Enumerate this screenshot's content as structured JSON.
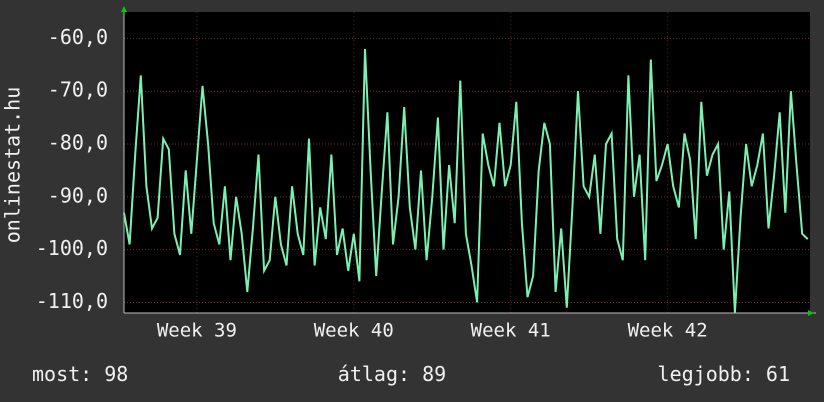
{
  "chart_data": {
    "type": "line",
    "ylabel": "onlinestat.hu",
    "x": [
      0,
      0.25,
      0.5,
      0.75,
      1,
      1.25,
      1.5,
      1.75,
      2,
      2.25,
      2.5,
      2.75,
      3,
      3.25,
      3.5,
      3.75,
      4,
      4.25,
      4.5,
      4.75,
      5,
      5.25,
      5.5,
      5.75,
      6,
      6.25,
      6.5,
      6.75,
      7,
      7.25,
      7.5,
      7.75,
      8,
      8.25,
      8.5,
      8.75,
      9,
      9.25,
      9.5,
      9.75,
      10,
      10.25,
      10.5,
      10.75,
      11,
      11.25,
      11.5,
      11.75,
      12,
      12.25,
      12.5,
      12.75,
      13,
      13.25,
      13.5,
      13.75,
      14,
      14.25,
      14.5,
      14.75,
      15,
      15.25,
      15.5,
      15.75,
      16,
      16.25,
      16.5,
      16.75,
      17,
      17.25,
      17.5,
      17.75,
      18,
      18.25,
      18.5,
      18.75,
      19,
      19.25,
      19.5,
      19.75,
      20,
      20.25,
      20.5,
      20.75,
      21,
      21.25,
      21.5,
      21.75,
      22,
      22.25,
      22.5,
      22.75,
      23,
      23.25,
      23.5,
      23.75,
      24,
      24.25,
      24.5,
      24.75,
      25,
      25.25,
      25.5,
      25.75,
      26,
      26.25,
      26.5,
      26.75,
      27,
      27.25,
      27.5,
      27.75,
      28,
      28.25,
      28.5,
      28.75,
      29,
      29.25,
      29.5,
      29.75,
      30,
      30.25,
      30.5
    ],
    "series": [
      {
        "color": "#7cf0b0",
        "values": [
          -93,
          -99,
          -82,
          -67,
          -88,
          -96,
          -94,
          -79,
          -81,
          -97,
          -101,
          -85,
          -97,
          -83,
          -69,
          -80,
          -95,
          -99,
          -88,
          -102,
          -90,
          -97,
          -108,
          -96,
          -82,
          -104,
          -102,
          -90,
          -99,
          -103,
          -88,
          -97,
          -101,
          -79,
          -103,
          -92,
          -98,
          -82,
          -101,
          -96,
          -104,
          -97,
          -106,
          -62,
          -85,
          -105,
          -89,
          -74,
          -99,
          -90,
          -73,
          -92,
          -100,
          -85,
          -102,
          -90,
          -75,
          -100,
          -84,
          -95,
          -68,
          -97,
          -103,
          -110,
          -78,
          -84,
          -88,
          -76,
          -88,
          -84,
          -72,
          -95,
          -109,
          -105,
          -85,
          -76,
          -80,
          -108,
          -96,
          -111,
          -92,
          -70,
          -88,
          -90,
          -82,
          -97,
          -80,
          -78,
          -98,
          -102,
          -67,
          -90,
          -82,
          -102,
          -64,
          -87,
          -84,
          -80,
          -88,
          -92,
          -78,
          -83,
          -98,
          -72,
          -86,
          -82,
          -80,
          -100,
          -89,
          -112,
          -94,
          -80,
          -88,
          -84,
          -78,
          -96,
          -86,
          -74,
          -93,
          -70,
          -84,
          -97,
          -98
        ]
      }
    ],
    "xlim": [
      0,
      30.6
    ],
    "xticks": [
      {
        "value": 3.25,
        "label": "Week 39"
      },
      {
        "value": 10.25,
        "label": "Week 40"
      },
      {
        "value": 17.25,
        "label": "Week 41"
      },
      {
        "value": 24.25,
        "label": "Week 42"
      }
    ],
    "ylim": [
      -112,
      -55
    ],
    "yticks": [
      {
        "value": -110,
        "label": "-110,0"
      },
      {
        "value": -100,
        "label": "-100,0"
      },
      {
        "value": -90,
        "label": "-90,0"
      },
      {
        "value": -80,
        "label": "-80,0"
      },
      {
        "value": -70,
        "label": "-70,0"
      },
      {
        "value": -60,
        "label": "-60,0"
      }
    ],
    "grid": true,
    "footer": [
      {
        "label": "most:",
        "value": 98
      },
      {
        "label": "átlag:",
        "value": 89
      },
      {
        "label": "legjobb:",
        "value": 61
      }
    ]
  }
}
